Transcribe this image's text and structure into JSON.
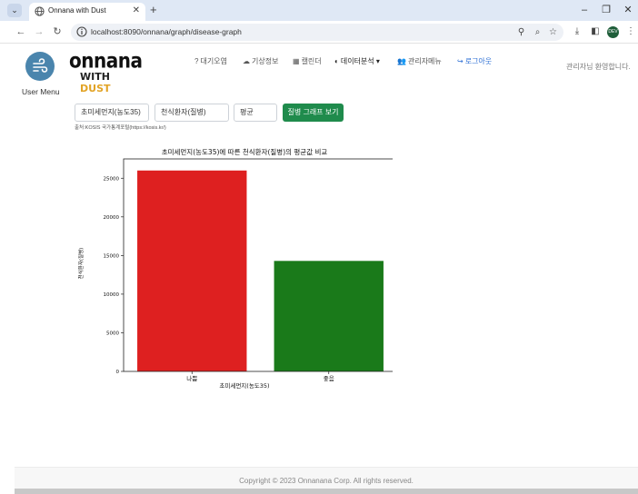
{
  "browser": {
    "tab_title": "Onnana with Dust",
    "url": "localhost:8090/onnana/graph/disease-graph",
    "tab_menu_icon": "chevron-down",
    "new_tab_icon": "+",
    "profile_initials": "DEV"
  },
  "sidebar": {
    "user_menu_label": "User Menu"
  },
  "logo": {
    "top": "onnana",
    "bottom_with": "WITH",
    "bottom_dust": "DUST"
  },
  "nav": {
    "items": [
      {
        "icon": "?",
        "label": "대기오염"
      },
      {
        "icon": "☁",
        "label": "기상정보"
      },
      {
        "icon": "▦",
        "label": "캘린더"
      },
      {
        "icon": "◐",
        "label": "데이터분석 ▾"
      },
      {
        "icon": "👥",
        "label": "관리자메뉴"
      },
      {
        "icon": "↪",
        "label": "로그아웃"
      }
    ],
    "welcome": "관리자님 환영합니다."
  },
  "filters": {
    "pollutant": "초미세먼지(농도35)",
    "disease": "천식환자(질병)",
    "stat": "평균",
    "submit_label": "질병 그래프 보기",
    "source": "출처:KOSIS 국가통계포털(https://kosis.kr/)"
  },
  "chart_data": {
    "type": "bar",
    "title": "초미세먼지(농도35)에 따른 천식환자(질병)의 평균값 비교",
    "xlabel": "초미세먼지(농도35)",
    "ylabel": "천식환자(질병)",
    "categories": [
      "나쁨",
      "좋음"
    ],
    "values": [
      26000,
      14300
    ],
    "colors": [
      "#de2020",
      "#1a7a1a"
    ],
    "ylim": [
      0,
      27500
    ],
    "yticks": [
      0,
      5000,
      10000,
      15000,
      20000,
      25000
    ],
    "grid": false
  },
  "footer": {
    "text": "Copyright © 2023 Onnanana Corp. All rights reserved."
  }
}
